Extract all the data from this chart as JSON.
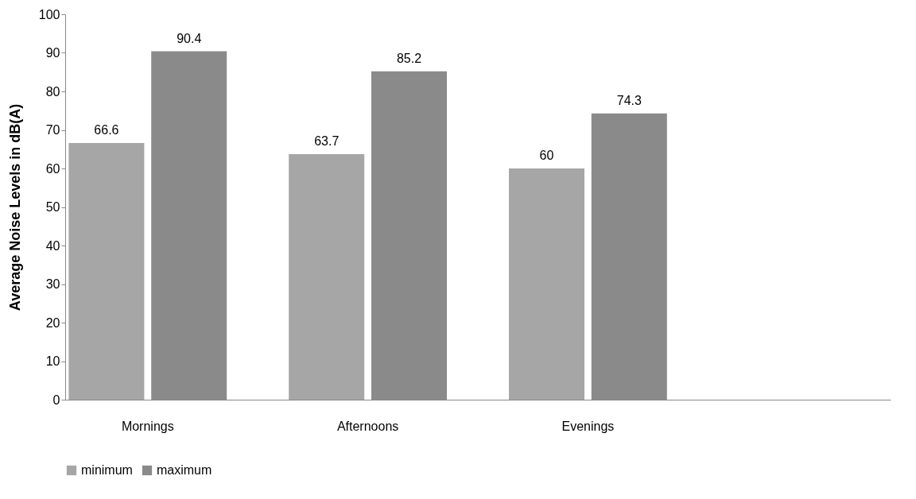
{
  "chart_data": {
    "type": "bar",
    "ylabel": "Average Noise Levels in dB(A)",
    "categories": [
      "Mornings",
      "Afternoons",
      "Evenings",
      null
    ],
    "series": [
      {
        "name": "minimum",
        "color": "#a6a6a6",
        "values": [
          66.6,
          63.7,
          60,
          null
        ]
      },
      {
        "name": "maximum",
        "color": "#8a8a8a",
        "values": [
          90.4,
          85.2,
          74.3,
          null
        ]
      }
    ],
    "ylim": [
      0,
      100
    ],
    "yticks": [
      0,
      10,
      20,
      30,
      40,
      50,
      60,
      70,
      80,
      90,
      100
    ],
    "grid": false,
    "legend": "bottom",
    "data_labels": true
  }
}
